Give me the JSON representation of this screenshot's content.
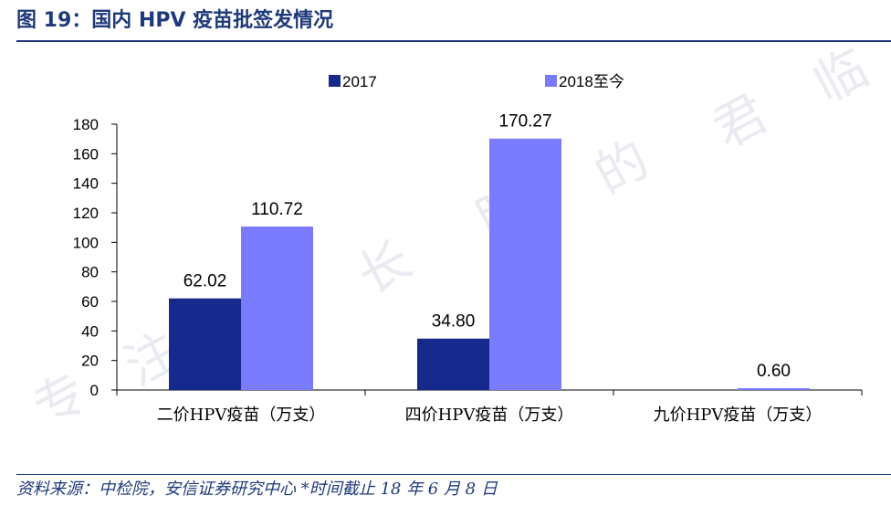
{
  "title": "图 19：国内 HPV 疫苗批签发情况",
  "source": "资料来源：中检院，安信证券研究中心 *时间截止 18 年 6 月 8 日",
  "watermark": [
    "专",
    "注",
    "成",
    "长",
    "股",
    "的",
    "君",
    "临"
  ],
  "colors": {
    "series_2017": "#152a8c",
    "series_2018": "#7b7bff",
    "title": "#1f3a7a",
    "axis": "#000000"
  },
  "chart_data": {
    "type": "bar",
    "title": "",
    "xlabel": "",
    "ylabel": "",
    "categories": [
      "二价HPV疫苗（万支）",
      "四价HPV疫苗（万支）",
      "九价HPV疫苗（万支）"
    ],
    "series": [
      {
        "name": "2017",
        "values": [
          62.02,
          34.8,
          null
        ],
        "labels": [
          "62.02",
          "34.80",
          ""
        ]
      },
      {
        "name": "2018至今",
        "values": [
          110.72,
          170.27,
          0.6
        ],
        "labels": [
          "110.72",
          "170.27",
          "0.60"
        ]
      }
    ],
    "ylim": [
      0,
      180
    ],
    "yticks": [
      0,
      20,
      40,
      60,
      80,
      100,
      120,
      140,
      160,
      180
    ],
    "grid": false,
    "legend": "top"
  }
}
